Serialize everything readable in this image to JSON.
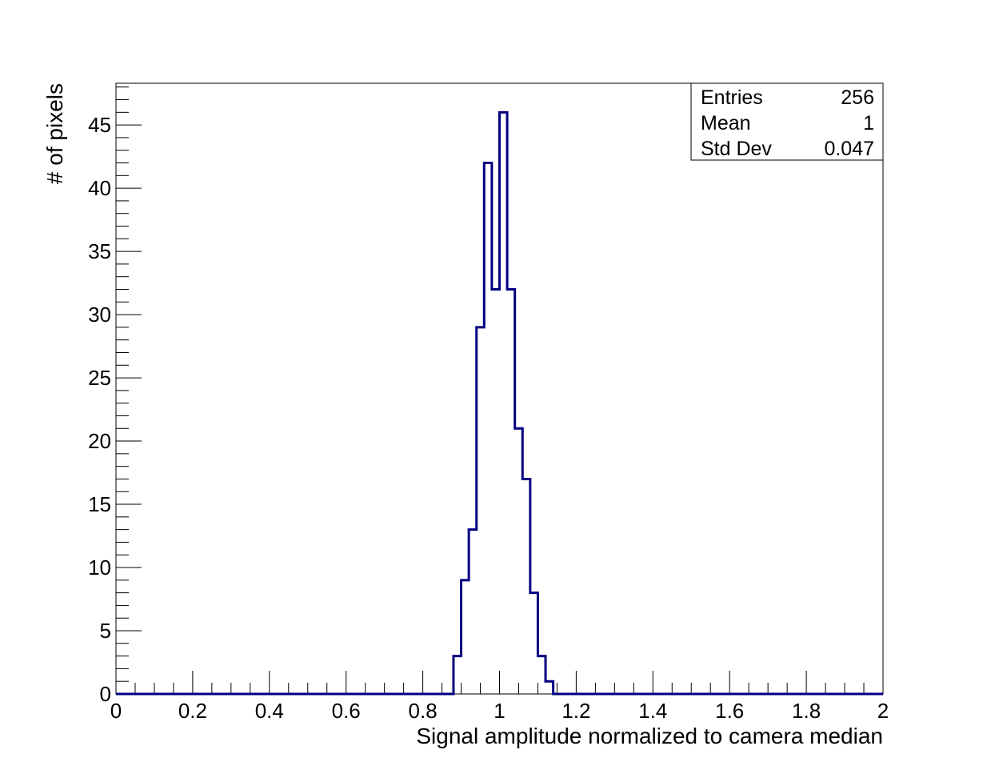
{
  "chart_data": {
    "type": "bar",
    "title": "",
    "xlabel": "Signal amplitude normalized to camera median",
    "ylabel": "# of pixels",
    "xlim": [
      0,
      2
    ],
    "ylim": [
      0,
      48.3
    ],
    "x_tick_values": [
      0,
      0.2,
      0.4,
      0.6,
      0.8,
      1,
      1.2,
      1.4,
      1.6,
      1.8,
      2
    ],
    "x_tick_labels": [
      "0",
      "0.2",
      "0.4",
      "0.6",
      "0.8",
      "1",
      "1.2",
      "1.4",
      "1.6",
      "1.8",
      "2"
    ],
    "y_tick_values": [
      0,
      5,
      10,
      15,
      20,
      25,
      30,
      35,
      40,
      45
    ],
    "y_tick_labels": [
      "0",
      "5",
      "10",
      "15",
      "20",
      "25",
      "30",
      "35",
      "40",
      "45"
    ],
    "bin_width": 0.02,
    "bin_low_edges": [
      0.88,
      0.9,
      0.92,
      0.94,
      0.96,
      0.98,
      1.0,
      1.02,
      1.04,
      1.06,
      1.08,
      1.1,
      1.12
    ],
    "values": [
      3,
      9,
      13,
      29,
      42,
      32,
      46,
      32,
      21,
      17,
      8,
      3,
      1
    ],
    "line_color": "#000080",
    "grid": false,
    "legend": "none",
    "stats_box": {
      "position": "top-right",
      "rows": [
        {
          "label": "Entries",
          "value": "256"
        },
        {
          "label": "Mean",
          "value": "1"
        },
        {
          "label": "Std Dev",
          "value": "0.047"
        }
      ]
    }
  }
}
